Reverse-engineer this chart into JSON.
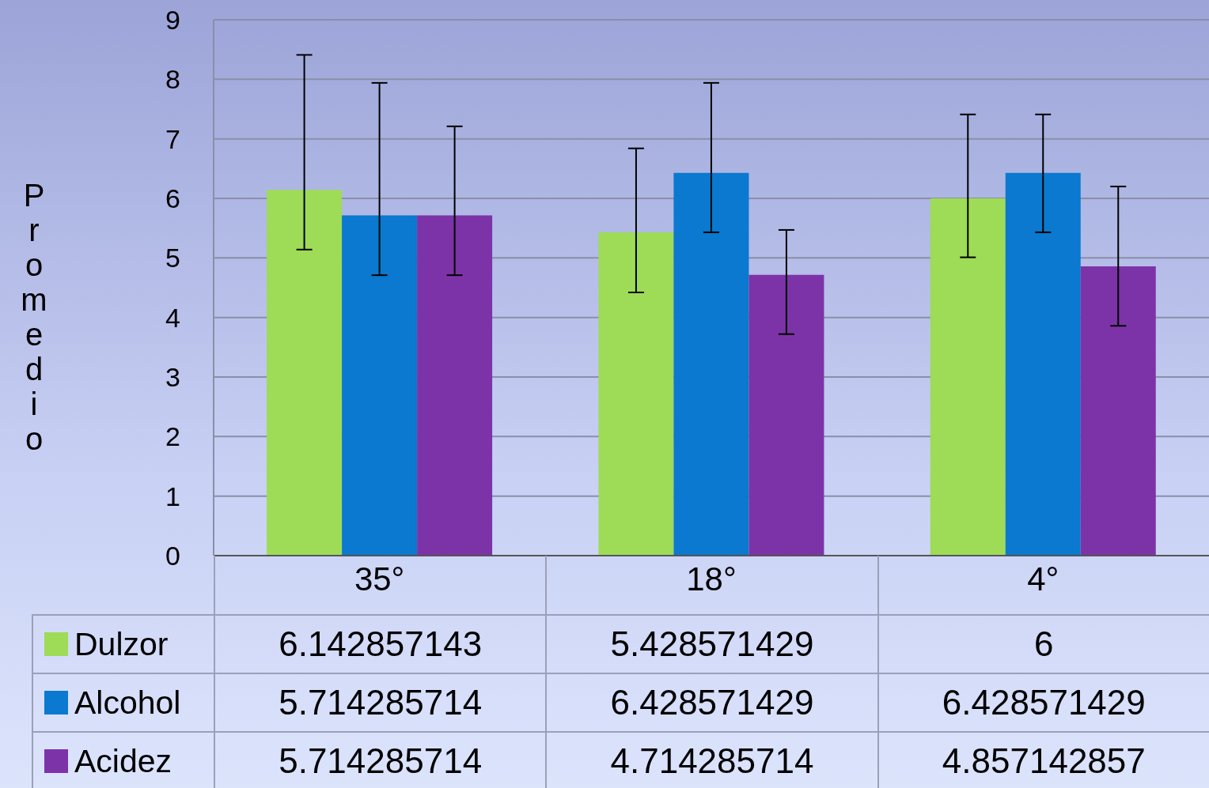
{
  "chart_data": {
    "type": "bar",
    "ylabel": "Promedio",
    "categories": [
      "35°",
      "18°",
      "4°"
    ],
    "series": [
      {
        "name": "Dulzor",
        "color": "#9edb57",
        "values": [
          6.142857143,
          5.428571429,
          6
        ],
        "errors": [
          [
            5.14,
            8.41
          ],
          [
            4.42,
            6.84
          ],
          [
            5.01,
            7.41
          ]
        ]
      },
      {
        "name": "Alcohol",
        "color": "#0a79cf",
        "values": [
          5.714285714,
          6.428571429,
          6.428571429
        ],
        "errors": [
          [
            4.71,
            7.94
          ],
          [
            5.43,
            7.94
          ],
          [
            5.43,
            7.41
          ]
        ]
      },
      {
        "name": "Acidez",
        "color": "#7d33a8",
        "values": [
          5.714285714,
          4.714285714,
          4.857142857
        ],
        "errors": [
          [
            4.71,
            7.21
          ],
          [
            3.72,
            5.47
          ],
          [
            3.86,
            6.2
          ]
        ]
      }
    ],
    "ylim": [
      0,
      9
    ],
    "yticks": [
      0,
      1,
      2,
      3,
      4,
      5,
      6,
      7,
      8,
      9
    ],
    "grid": "y",
    "data_labels": true,
    "legend": "bottom left"
  }
}
